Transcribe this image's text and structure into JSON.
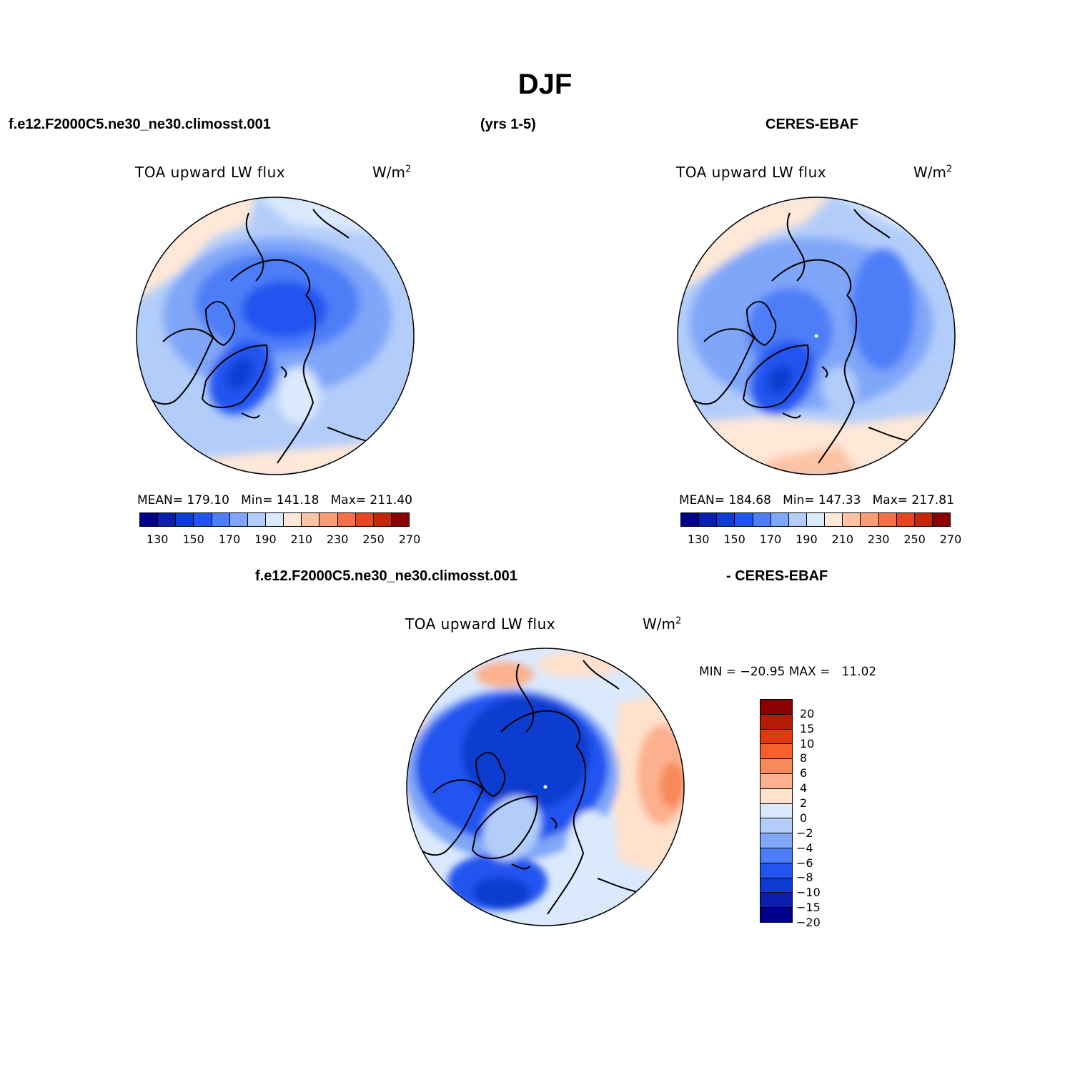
{
  "title": "DJF",
  "header": {
    "case_name": "f.e12.F2000C5.ne30_ne30.climosst.001",
    "years": "(yrs 1-5)",
    "obs_name": "CERES-EBAF"
  },
  "panels": [
    {
      "id": "model",
      "variable": "TOA upward LW flux",
      "units": "W/m",
      "units_sup": "2",
      "stats": "MEAN= 179.10   Min= 141.18   Max= 211.40"
    },
    {
      "id": "obs",
      "variable": "TOA upward LW flux",
      "units": "W/m",
      "units_sup": "2",
      "stats": "MEAN= 184.68   Min= 147.33   Max= 217.81"
    }
  ],
  "diff_panel": {
    "case_label": "f.e12.F2000C5.ne30_ne30.climosst.001",
    "obs_label": "- CERES-EBAF",
    "variable": "TOA upward LW flux",
    "units": "W/m",
    "units_sup": "2",
    "stats": "MIN = −20.95 MAX =   11.02"
  },
  "abs_colorbar": {
    "colors": [
      "#00008b",
      "#0a1eae",
      "#0f3cd0",
      "#2255f0",
      "#4d7ef8",
      "#7fa6f8",
      "#b3cdfa",
      "#dbe9fc",
      "#ffe8d8",
      "#fcc3a4",
      "#fa9d76",
      "#f5704a",
      "#e5451f",
      "#c22808",
      "#8b0000"
    ],
    "tick_labels": [
      "130",
      "150",
      "170",
      "190",
      "210",
      "230",
      "250",
      "270"
    ]
  },
  "diff_colorbar": {
    "colors": [
      "#8b0000",
      "#b51b05",
      "#e0390f",
      "#f7602a",
      "#f8895a",
      "#fcb08e",
      "#ffe1cc",
      "#dbe9fc",
      "#b3cdfa",
      "#7fa6f8",
      "#4d7ef8",
      "#2255f0",
      "#0f3cd0",
      "#0a1eae",
      "#00008b"
    ],
    "labels": [
      "20",
      "15",
      "10",
      "8",
      "6",
      "4",
      "2",
      "0",
      "−2",
      "−4",
      "−6",
      "−8",
      "−10",
      "−15",
      "−20"
    ]
  }
}
